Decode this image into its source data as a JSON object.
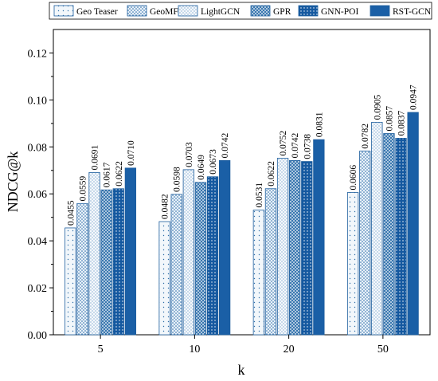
{
  "chart_data": {
    "type": "bar",
    "title": "",
    "xlabel": "k",
    "ylabel": "NDCG@k",
    "categories": [
      "5",
      "10",
      "20",
      "50"
    ],
    "ylim": [
      0.0,
      0.13
    ],
    "yticks": [
      "0.00",
      "0.02",
      "0.04",
      "0.06",
      "0.08",
      "0.10",
      "0.12"
    ],
    "legend_position": "top",
    "grid": false,
    "series": [
      {
        "name": "Geo Teaser",
        "values": [
          0.0455,
          0.0482,
          0.0531,
          0.0606
        ],
        "labels": [
          "0.0455",
          "0.0482",
          "0.0531",
          "0.0606"
        ]
      },
      {
        "name": "GeoMF",
        "values": [
          0.0559,
          0.0598,
          0.0622,
          0.0782
        ],
        "labels": [
          "0.0559",
          "0.0598",
          "0.0622",
          "0.0782"
        ]
      },
      {
        "name": "LightGCN",
        "values": [
          0.0691,
          0.0703,
          0.0752,
          0.0905
        ],
        "labels": [
          "0.0691",
          "0.0703",
          "0.0752",
          "0.0905"
        ]
      },
      {
        "name": "GPR",
        "values": [
          0.0617,
          0.0649,
          0.0742,
          0.0857
        ],
        "labels": [
          "0.0617",
          "0.0649",
          "0.0742",
          "0.0857"
        ]
      },
      {
        "name": "GNN-POI",
        "values": [
          0.0622,
          0.0673,
          0.0738,
          0.0837
        ],
        "labels": [
          "0.0622",
          "0.0673",
          "0.0738",
          "0.0837"
        ]
      },
      {
        "name": "RST-GCN",
        "values": [
          0.071,
          0.0742,
          0.0831,
          0.0947
        ],
        "labels": [
          "0.0710",
          "0.0742",
          "0.0831",
          "0.0947"
        ]
      }
    ]
  }
}
